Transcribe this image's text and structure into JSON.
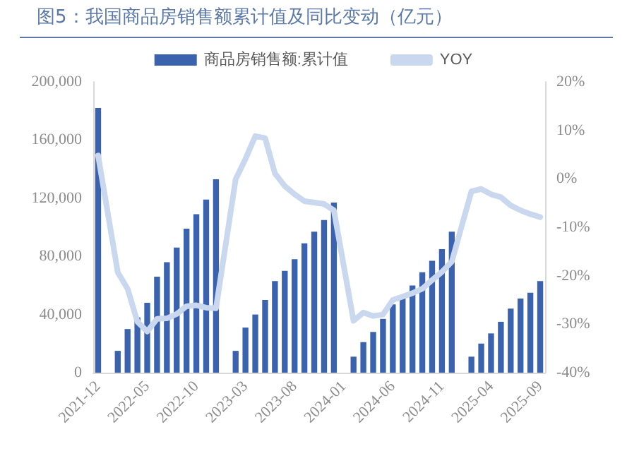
{
  "chart_data": {
    "type": "bar",
    "title": "图5：我国商品房销售额累计值及同比变动（亿元）",
    "categories": [
      "2021-12",
      null,
      null,
      null,
      null,
      "2022-05",
      null,
      null,
      null,
      null,
      "2022-10",
      null,
      null,
      null,
      null,
      "2023-03",
      null,
      null,
      null,
      null,
      "2023-08",
      null,
      null,
      null,
      null,
      "2024-01",
      null,
      null,
      null,
      null,
      "2024-06",
      null,
      null,
      null,
      null,
      "2024-11",
      null,
      null,
      null,
      null,
      "2025-04",
      null,
      null,
      null,
      null,
      "2025-09"
    ],
    "series": [
      {
        "name": "商品房销售额:累计值",
        "color": "#3a62ae",
        "values": [
          182000,
          null,
          15000,
          30000,
          38000,
          48000,
          66000,
          76000,
          86000,
          99000,
          109000,
          119000,
          133000,
          null,
          15000,
          31000,
          40000,
          50000,
          63000,
          70000,
          78000,
          89000,
          97000,
          105000,
          117000,
          null,
          11000,
          21000,
          28000,
          37000,
          47000,
          53000,
          60000,
          69000,
          77000,
          85000,
          97000,
          null,
          11000,
          20000,
          27000,
          35000,
          44000,
          51000,
          55000,
          63000
        ]
      },
      {
        "name": "YOY",
        "type": "line",
        "axis": "y2",
        "color": "#c9d8ef",
        "values": [
          4.8,
          null,
          -19.3,
          -22.7,
          -29.5,
          -31.5,
          -28.9,
          -28.8,
          -27.9,
          -26.3,
          -26.1,
          -26.6,
          -26.7,
          null,
          -0.1,
          4.1,
          8.8,
          8.4,
          1.1,
          -1.5,
          -3.2,
          -4.6,
          -4.9,
          -5.2,
          -6.5,
          null,
          -29.3,
          -27.6,
          -28.3,
          -28.0,
          -25.0,
          -24.3,
          -23.6,
          -22.7,
          -20.9,
          -19.2,
          -17.1,
          null,
          -2.6,
          -2.1,
          -3.2,
          -3.8,
          -5.5,
          -6.5,
          -7.3,
          -7.9
        ]
      }
    ],
    "ylim": [
      0,
      200000
    ],
    "yticks": [
      {
        "value": 0,
        "label": "0"
      },
      {
        "value": 40000,
        "label": "40,000"
      },
      {
        "value": 80000,
        "label": "80,000"
      },
      {
        "value": 120000,
        "label": "120,000"
      },
      {
        "value": 160000,
        "label": "160,000"
      },
      {
        "value": 200000,
        "label": "200,000"
      }
    ],
    "y2lim": [
      -40,
      20
    ],
    "y2ticks": [
      {
        "value": -40,
        "label": "-40%"
      },
      {
        "value": -30,
        "label": "-30%"
      },
      {
        "value": -20,
        "label": "-20%"
      },
      {
        "value": -10,
        "label": "-10%"
      },
      {
        "value": 0,
        "label": "0%"
      },
      {
        "value": 10,
        "label": "10%"
      },
      {
        "value": 20,
        "label": "20%"
      }
    ],
    "grid": false,
    "legend": "top",
    "marker": "none",
    "line_style": "solid"
  }
}
